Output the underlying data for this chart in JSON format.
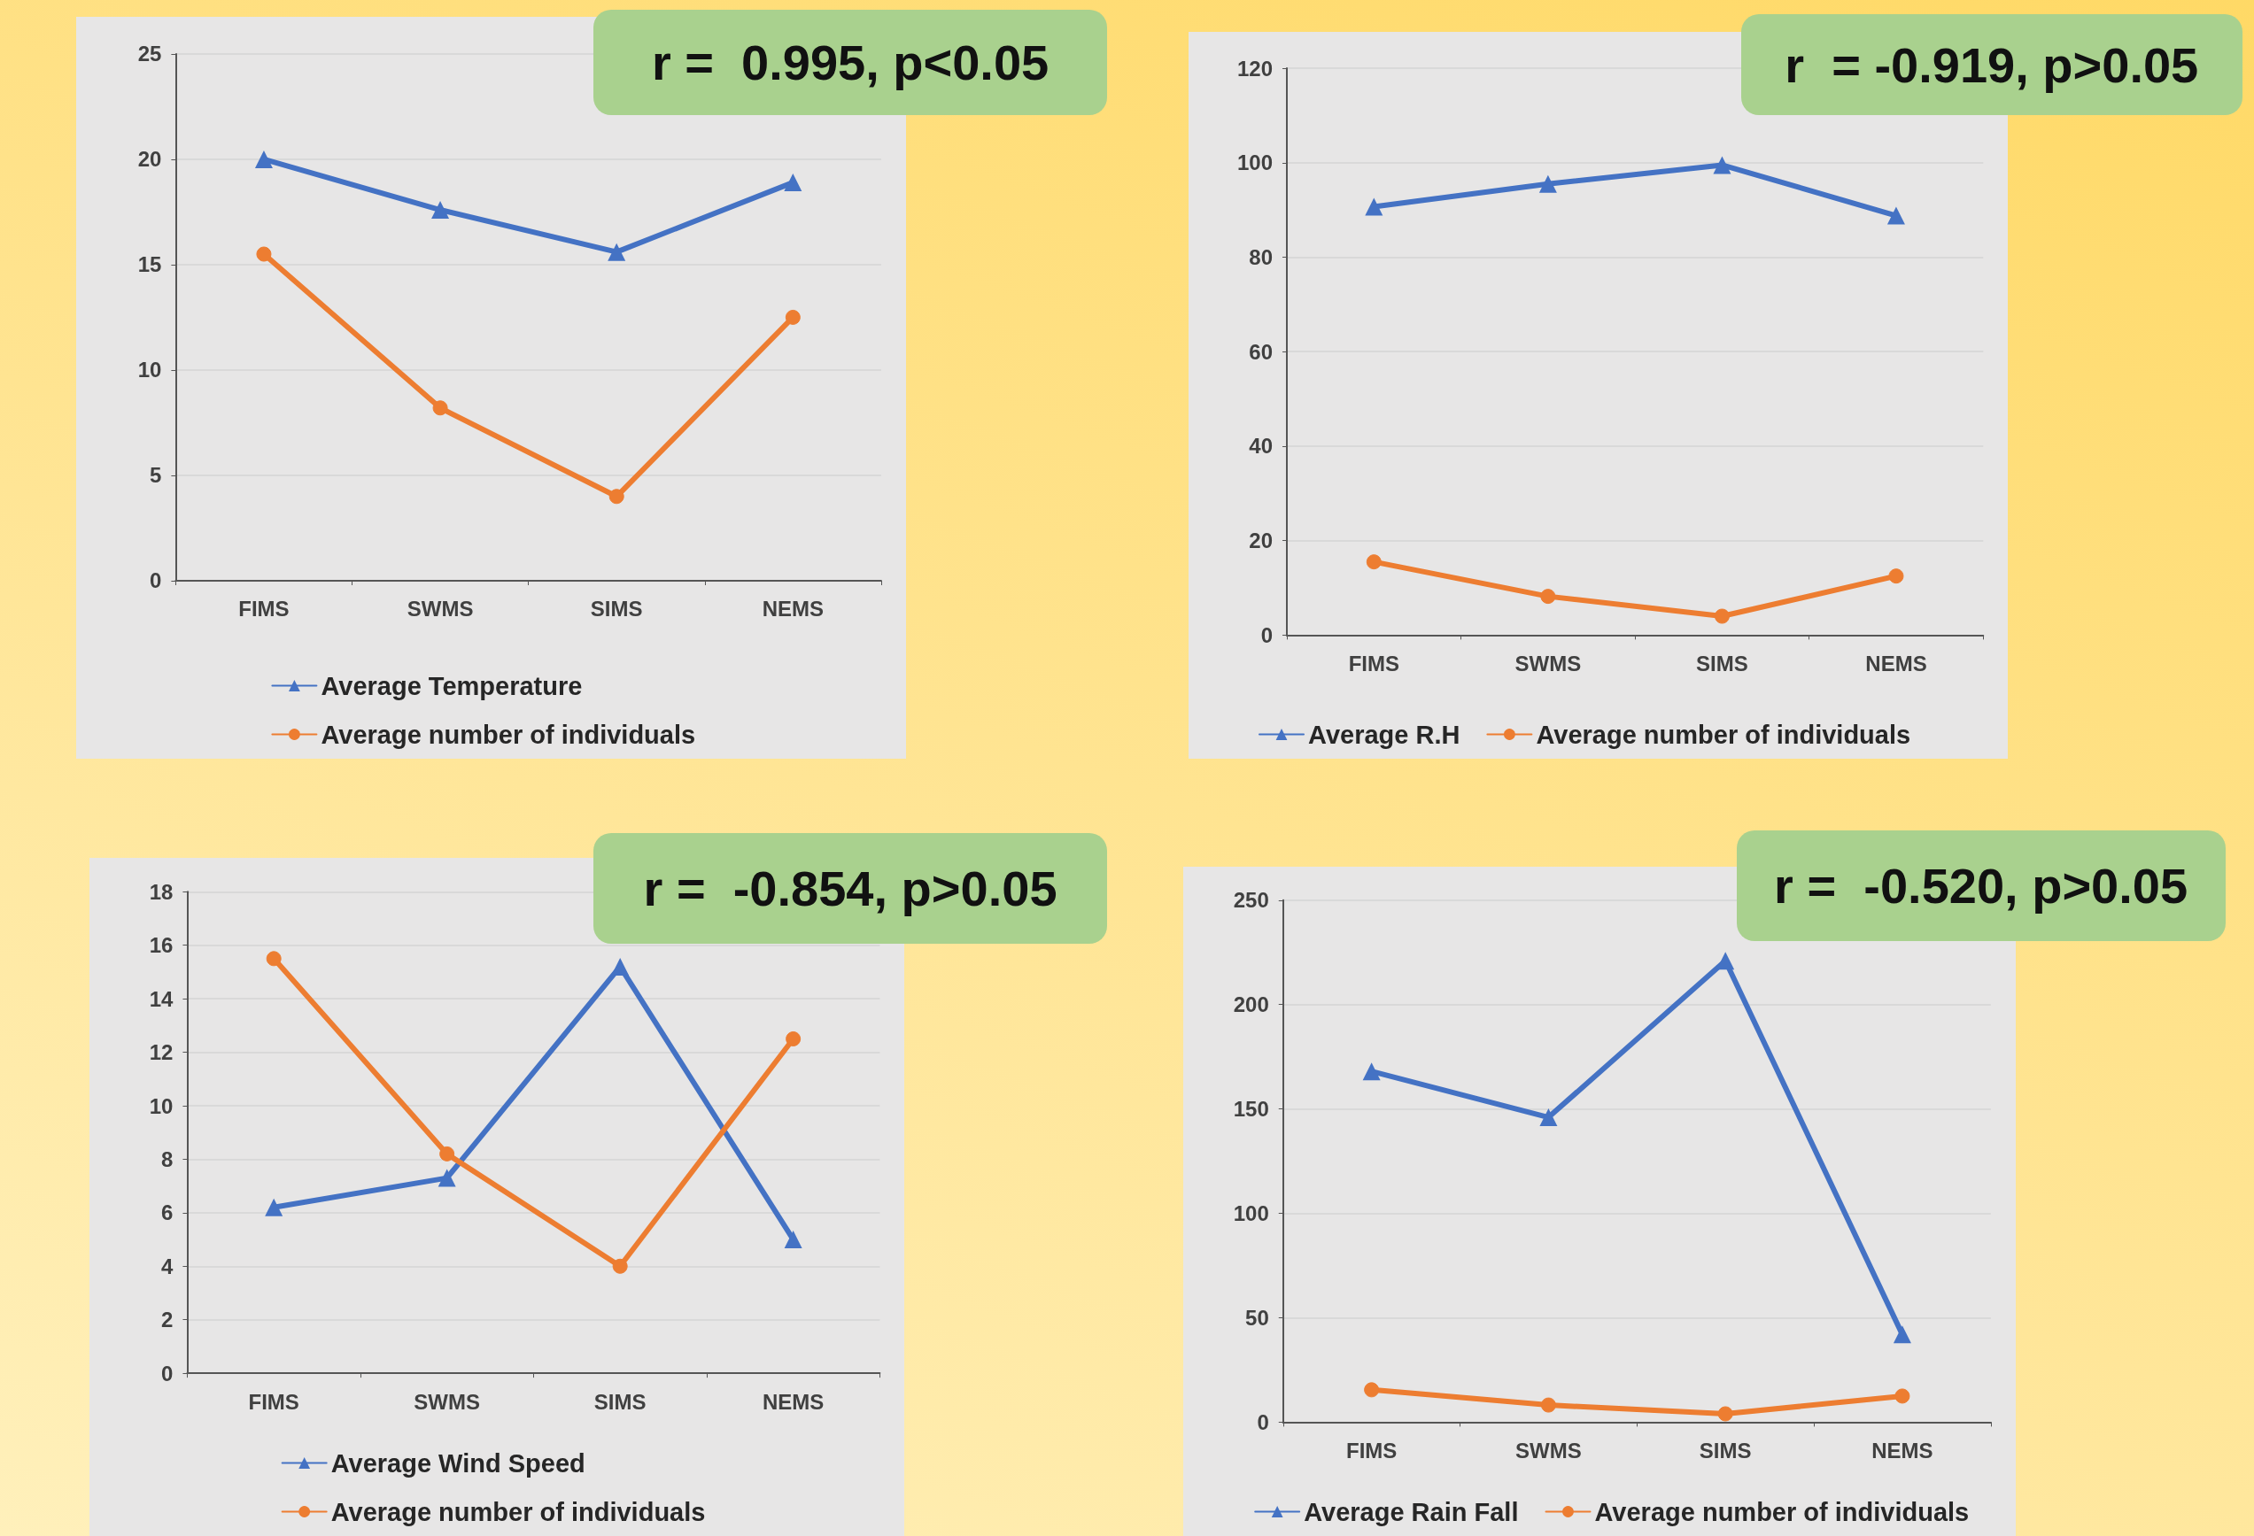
{
  "chart_data": [
    {
      "type": "line",
      "annotations": [
        "r =  0.995, p<0.05"
      ],
      "categories": [
        "FIMS",
        "SWMS",
        "SIMS",
        "NEMS"
      ],
      "ylim": [
        0,
        25
      ],
      "yticks": [
        0,
        5,
        10,
        15,
        20,
        25
      ],
      "grid": "y",
      "legend": "bottom",
      "series": [
        {
          "name": "Average Temperature",
          "color": "#4472c4",
          "marker": "triangle",
          "values": [
            20,
            17.6,
            15.6,
            18.9
          ]
        },
        {
          "name": "Average number of individuals",
          "color": "#ed7d31",
          "marker": "circle",
          "values": [
            15.5,
            8.2,
            4,
            12.5
          ]
        }
      ]
    },
    {
      "type": "line",
      "annotations": [
        "r  = -0.919, p>0.05"
      ],
      "categories": [
        "FIMS",
        "SWMS",
        "SIMS",
        "NEMS"
      ],
      "ylim": [
        0,
        120
      ],
      "yticks": [
        0,
        20,
        40,
        60,
        80,
        100,
        120
      ],
      "grid": "y",
      "legend": "bottom",
      "series": [
        {
          "name": "Average R.H",
          "color": "#4472c4",
          "marker": "triangle",
          "values": [
            90.7,
            95.5,
            99.5,
            88.8
          ]
        },
        {
          "name": "Average number of individuals",
          "color": "#ed7d31",
          "marker": "circle",
          "values": [
            15.5,
            8.2,
            4,
            12.5
          ]
        }
      ]
    },
    {
      "type": "line",
      "annotations": [
        "r =  -0.854, p>0.05"
      ],
      "categories": [
        "FIMS",
        "SWMS",
        "SIMS",
        "NEMS"
      ],
      "ylim": [
        0,
        18
      ],
      "yticks": [
        0,
        2,
        4,
        6,
        8,
        10,
        12,
        14,
        16,
        18
      ],
      "grid": "y",
      "legend": "bottom",
      "series": [
        {
          "name": "Average Wind Speed",
          "color": "#4472c4",
          "marker": "triangle",
          "values": [
            6.2,
            7.3,
            15.2,
            5
          ]
        },
        {
          "name": "Average number of individuals",
          "color": "#ed7d31",
          "marker": "circle",
          "values": [
            15.5,
            8.2,
            4,
            12.5
          ]
        }
      ]
    },
    {
      "type": "line",
      "annotations": [
        "r =  -0.520, p>0.05"
      ],
      "categories": [
        "FIMS",
        "SWMS",
        "SIMS",
        "NEMS"
      ],
      "ylim": [
        0,
        250
      ],
      "yticks": [
        0,
        50,
        100,
        150,
        200,
        250
      ],
      "grid": "y",
      "legend": "bottom",
      "series": [
        {
          "name": "Average Rain Fall",
          "color": "#4472c4",
          "marker": "triangle",
          "values": [
            168,
            146,
            221,
            42
          ]
        },
        {
          "name": "Average number of individuals",
          "color": "#ed7d31",
          "marker": "circle",
          "values": [
            15.5,
            8.2,
            4,
            12.5
          ]
        }
      ]
    }
  ]
}
